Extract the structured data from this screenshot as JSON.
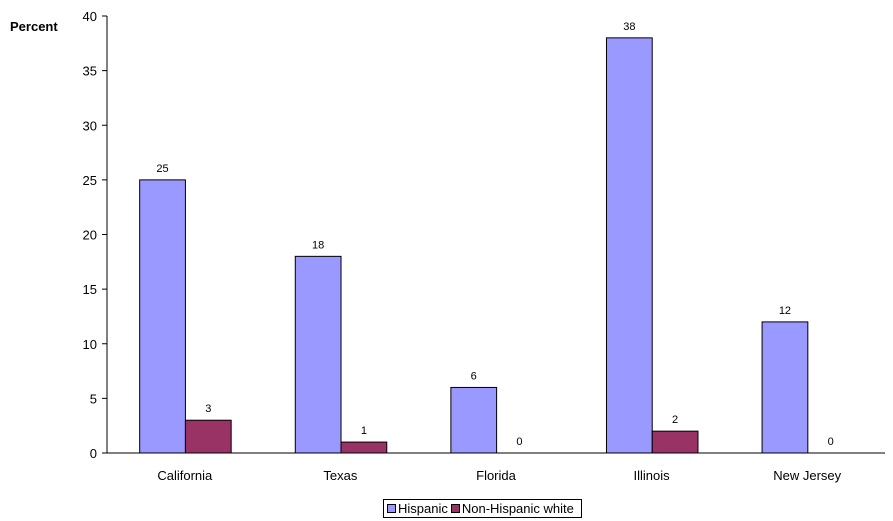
{
  "chart_data": {
    "type": "bar",
    "ylabel": "Percent",
    "categories": [
      "California",
      "Texas",
      "Florida",
      "Illinois",
      "New Jersey"
    ],
    "series": [
      {
        "name": "Hispanic",
        "values": [
          25,
          18,
          6,
          38,
          12
        ],
        "color": "#9999FF"
      },
      {
        "name": "Non-Hispanic white",
        "values": [
          3,
          1,
          0,
          2,
          0
        ],
        "color": "#993366"
      }
    ],
    "ylim": [
      0,
      40
    ],
    "yticks": [
      0,
      5,
      10,
      15,
      20,
      25,
      30,
      35,
      40
    ],
    "grid": false,
    "legend_position": "bottom-center",
    "data_labels": true
  }
}
